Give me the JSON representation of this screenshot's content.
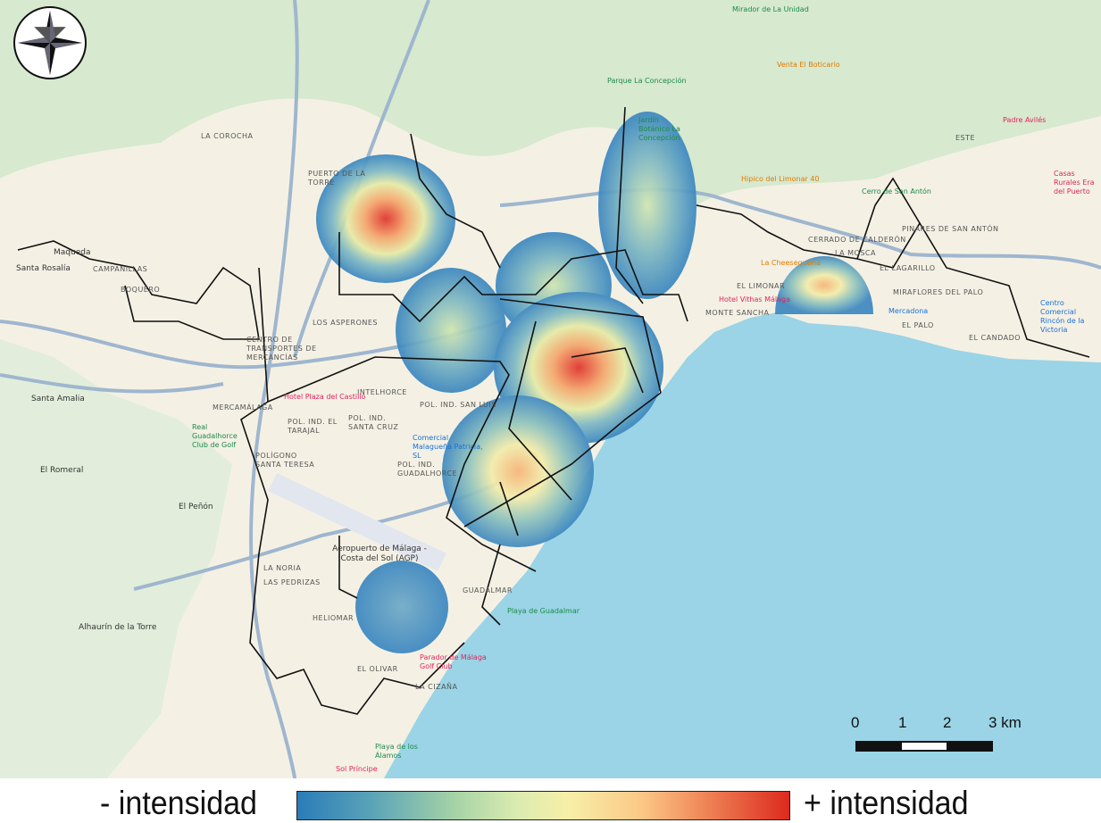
{
  "map": {
    "colors": {
      "sea": "#9ad4e6",
      "land": "#f4f1e4",
      "green": "#d7e9cf",
      "roads": "#9fb6cf",
      "boundary": "#111111"
    },
    "compass": "compass-rose-icon",
    "labels": [
      "Maqueda",
      "Santa Rosalía",
      "CAMPANILLAS",
      "Santa Amalia",
      "El Romeral",
      "El Peñón",
      "Alhaurín de la Torre",
      "LOS ASPERONES",
      "INTELHORCE",
      "POL. IND. SAN LUIS",
      "POL. IND. SANTA CRUZ",
      "POLÍGONO SANTA TERESA",
      "POL. IND. GUADALHORCE",
      "MERCAMÁLAGA",
      "Aeropuerto de Málaga - Costa del Sol (AGP)",
      "LA NORIA",
      "LAS PEDRIZAS",
      "HELIOMAR",
      "EL OLIVAR",
      "LA CIZAÑA",
      "GUADALMAR",
      "EL LIMONAR",
      "MONTE SANCHA",
      "EL PALO",
      "MIRAFLORES DEL PALO",
      "PINARES DE SAN ANTÓN",
      "CERRADO DE CALDERÓN",
      "LA MOSCA",
      "EL LAGARILLO",
      "EL CANDADO",
      "ESTE",
      "CENTRO DE TRANSPORTES DE MERCANCÍAS",
      "POL. IND. EL TARAJAL",
      "BOQUERO",
      "LA COROCHA",
      "PUERTO DE LA TORRE"
    ],
    "pois": [
      "Hotel Plaza del Castillo",
      "Hotel Vithas Málaga",
      "Casas Rurales Era del Puerto",
      "Padre Avilés",
      "Centro Comercial Rincón de la Victoria",
      "Parque La Concepción",
      "Mirador de La Unidad",
      "La Cheesequeria",
      "Hipico del Limonar 40",
      "Cerro de San Antón",
      "Parador de Málaga Golf Club",
      "Playa de Guadalmar",
      "Mercadona",
      "Comercial Malagueña Patricia, SL",
      "Jardín Botánico La Concepción",
      "Venta El Boticario",
      "Real Guadalhorce Club de Golf",
      "Playa de los Álamos",
      "Sol Príncipe"
    ]
  },
  "scale": {
    "ticks": [
      "0",
      "1",
      "2",
      "3 km"
    ]
  },
  "legend": {
    "low": "- intensidad",
    "high": "+ intensidad",
    "colors": [
      "#2a7cb8",
      "#a6d3a6",
      "#f7efa8",
      "#fbc886",
      "#dc2a1e"
    ]
  }
}
